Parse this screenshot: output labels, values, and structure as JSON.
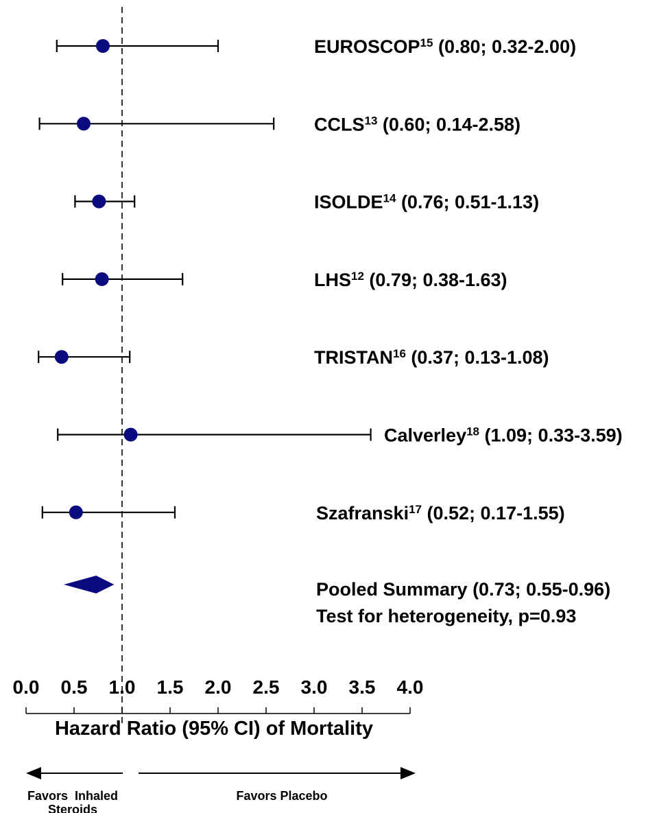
{
  "chart_data": {
    "type": "forest",
    "xlabel": "Hazard Ratio (95% CI) of Mortality",
    "xlim": [
      0.0,
      4.0
    ],
    "xticks": [
      "0.0",
      "0.5",
      "1.0",
      "1.5",
      "2.0",
      "2.5",
      "3.0",
      "3.5",
      "4.0"
    ],
    "reference_line": 1.0,
    "studies": [
      {
        "name": "EUROSCOP",
        "ref": "15",
        "stat": "(0.80; 0.32-2.00)",
        "hr": 0.8,
        "lo": 0.32,
        "hi": 2.0
      },
      {
        "name": "CCLS",
        "ref": "13",
        "stat": "(0.60; 0.14-2.58)",
        "hr": 0.6,
        "lo": 0.14,
        "hi": 2.58
      },
      {
        "name": "ISOLDE",
        "ref": "14",
        "stat": "(0.76; 0.51-1.13)",
        "hr": 0.76,
        "lo": 0.51,
        "hi": 1.13
      },
      {
        "name": "LHS",
        "ref": "12",
        "stat": "(0.79; 0.38-1.63)",
        "hr": 0.79,
        "lo": 0.38,
        "hi": 1.63
      },
      {
        "name": "TRISTAN",
        "ref": "16",
        "stat": "(0.37; 0.13-1.08)",
        "hr": 0.37,
        "lo": 0.13,
        "hi": 1.08
      },
      {
        "name": "Calverley",
        "ref": "18",
        "stat": "(1.09; 0.33-3.59)",
        "hr": 1.09,
        "lo": 0.33,
        "hi": 3.59
      },
      {
        "name": "Szafranski",
        "ref": "17",
        "stat": "(0.52; 0.17-1.55)",
        "hr": 0.52,
        "lo": 0.17,
        "hi": 1.55
      }
    ],
    "pooled": {
      "label": "Pooled Summary (0.73; 0.55-0.96)",
      "hr": 0.73,
      "lo": 0.55,
      "hi": 0.96
    },
    "heterogeneity": "Test for heterogeneity, p=0.93",
    "favors_left": [
      "Favors  Inhaled",
      "Steroids"
    ],
    "favors_right": "Favors Placebo",
    "colors": {
      "marker": "#0a0a80",
      "line": "#000000"
    }
  }
}
